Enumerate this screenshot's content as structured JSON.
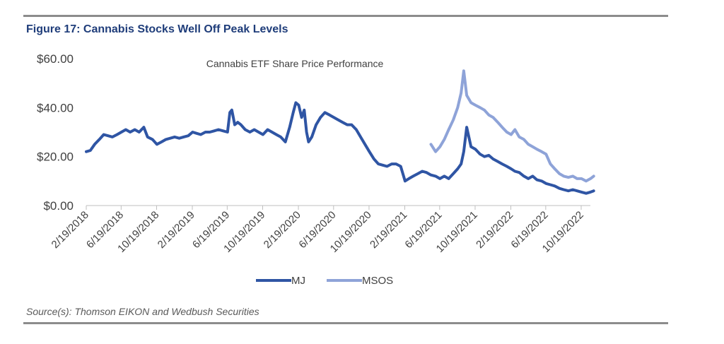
{
  "figure_title": "Figure 17: Cannabis Stocks Well Off Peak Levels",
  "source": "Source(s): Thomson EIKON and Wedbush Securities",
  "colors": {
    "MJ": "#2f55a4",
    "MSOS": "#8ea3d8",
    "rule": "#8c8c8c",
    "title": "#1f3d7a"
  },
  "chart_data": {
    "type": "line",
    "title": "Cannabis ETF Share Price Performance",
    "xlabel": "",
    "ylabel": "",
    "ylim": [
      0,
      60
    ],
    "yticks": [
      0,
      20,
      40,
      60
    ],
    "ytick_labels": [
      "$0.00",
      "$20.00",
      "$40.00",
      "$60.00"
    ],
    "xlim": [
      "2018-02-19",
      "2022-12-01"
    ],
    "xticks": [
      "2018-02-19",
      "2018-06-19",
      "2018-10-19",
      "2019-02-19",
      "2019-06-19",
      "2019-10-19",
      "2020-02-19",
      "2020-06-19",
      "2020-10-19",
      "2021-02-19",
      "2021-06-19",
      "2021-10-19",
      "2022-02-19",
      "2022-06-19",
      "2022-10-19"
    ],
    "xtick_labels": [
      "2/19/2018",
      "6/19/2018",
      "10/19/2018",
      "2/19/2019",
      "6/19/2019",
      "10/19/2019",
      "2/19/2020",
      "6/19/2020",
      "10/19/2020",
      "2/19/2021",
      "6/19/2021",
      "10/19/2021",
      "2/19/2022",
      "6/19/2022",
      "10/19/2022"
    ],
    "grid": false,
    "legend": "bottom-center",
    "series": [
      {
        "name": "MJ",
        "x": [
          "2018-02-19",
          "2018-03-05",
          "2018-03-20",
          "2018-04-05",
          "2018-04-20",
          "2018-05-05",
          "2018-05-20",
          "2018-06-05",
          "2018-06-20",
          "2018-07-05",
          "2018-07-20",
          "2018-08-05",
          "2018-08-20",
          "2018-09-05",
          "2018-09-18",
          "2018-10-05",
          "2018-10-20",
          "2018-11-05",
          "2018-11-20",
          "2018-12-05",
          "2018-12-20",
          "2019-01-05",
          "2019-01-20",
          "2019-02-05",
          "2019-02-20",
          "2019-03-05",
          "2019-03-20",
          "2019-04-05",
          "2019-04-20",
          "2019-05-05",
          "2019-05-20",
          "2019-06-05",
          "2019-06-20",
          "2019-06-28",
          "2019-07-05",
          "2019-07-15",
          "2019-07-25",
          "2019-08-05",
          "2019-08-20",
          "2019-09-05",
          "2019-09-20",
          "2019-10-05",
          "2019-10-20",
          "2019-11-05",
          "2019-11-20",
          "2019-12-05",
          "2019-12-20",
          "2020-01-05",
          "2020-01-20",
          "2020-02-01",
          "2020-02-10",
          "2020-02-20",
          "2020-03-01",
          "2020-03-10",
          "2020-03-18",
          "2020-03-25",
          "2020-04-05",
          "2020-04-20",
          "2020-05-05",
          "2020-05-20",
          "2020-06-05",
          "2020-06-20",
          "2020-07-05",
          "2020-07-20",
          "2020-08-05",
          "2020-08-20",
          "2020-09-05",
          "2020-09-20",
          "2020-10-05",
          "2020-10-20",
          "2020-11-05",
          "2020-11-20",
          "2020-12-05",
          "2020-12-20",
          "2021-01-05",
          "2021-01-20",
          "2021-02-05",
          "2021-02-20",
          "2021-03-05",
          "2021-03-20",
          "2021-04-05",
          "2021-04-20",
          "2021-05-05",
          "2021-05-20",
          "2021-06-05",
          "2021-06-20",
          "2021-07-05",
          "2021-07-20",
          "2021-08-05",
          "2021-08-20",
          "2021-09-01",
          "2021-09-10",
          "2021-09-20",
          "2021-10-05",
          "2021-10-20",
          "2021-11-05",
          "2021-11-20",
          "2021-12-05",
          "2021-12-20",
          "2022-01-05",
          "2022-01-20",
          "2022-02-05",
          "2022-02-20",
          "2022-03-05",
          "2022-03-20",
          "2022-04-05",
          "2022-04-20",
          "2022-05-05",
          "2022-05-20",
          "2022-06-05",
          "2022-06-20",
          "2022-07-05",
          "2022-07-20",
          "2022-08-05",
          "2022-08-20",
          "2022-09-05",
          "2022-09-20",
          "2022-10-05",
          "2022-10-20",
          "2022-11-05",
          "2022-11-20",
          "2022-12-01"
        ],
        "values": [
          22,
          22.5,
          25,
          27,
          29,
          28.5,
          28,
          29,
          30,
          31,
          30,
          31,
          30,
          32,
          28,
          27,
          25,
          26,
          27,
          27.5,
          28,
          27.5,
          28,
          28.5,
          30,
          29.5,
          29,
          30,
          30,
          30.5,
          31,
          30.5,
          30,
          38,
          39,
          33,
          34,
          33,
          31,
          30,
          31,
          30,
          29,
          31,
          30,
          29,
          28,
          26,
          32,
          38,
          42,
          41,
          36,
          39,
          30,
          26,
          28,
          33,
          36,
          38,
          37,
          36,
          35,
          34,
          33,
          33,
          31,
          28,
          25,
          22,
          19,
          17,
          16.5,
          16,
          17,
          17,
          16,
          10,
          11,
          12,
          13,
          14,
          13.5,
          12.5,
          12,
          11,
          12,
          11,
          13,
          15,
          17,
          22,
          32,
          24,
          23,
          21,
          20,
          20.5,
          19,
          18,
          17,
          16,
          15,
          14,
          13.5,
          12,
          11,
          12,
          10.5,
          10,
          9,
          8.5,
          8,
          7,
          6.5,
          6,
          6.5,
          6,
          5.5,
          5,
          5.5,
          6
        ]
      },
      {
        "name": "MSOS",
        "x": [
          "2021-05-20",
          "2021-06-05",
          "2021-06-20",
          "2021-07-05",
          "2021-07-20",
          "2021-08-05",
          "2021-08-20",
          "2021-09-01",
          "2021-09-10",
          "2021-09-20",
          "2021-10-05",
          "2021-10-20",
          "2021-11-05",
          "2021-11-20",
          "2021-12-05",
          "2021-12-20",
          "2022-01-05",
          "2022-01-20",
          "2022-02-05",
          "2022-02-20",
          "2022-03-05",
          "2022-03-20",
          "2022-04-05",
          "2022-04-20",
          "2022-05-05",
          "2022-05-20",
          "2022-06-05",
          "2022-06-20",
          "2022-07-05",
          "2022-07-20",
          "2022-08-05",
          "2022-08-20",
          "2022-09-05",
          "2022-09-20",
          "2022-10-05",
          "2022-10-20",
          "2022-11-05",
          "2022-11-20",
          "2022-12-01"
        ],
        "values": [
          25,
          22,
          24,
          27,
          31,
          35,
          40,
          46,
          55,
          45,
          42,
          41,
          40,
          39,
          37,
          36,
          34,
          32,
          30,
          29,
          31,
          28,
          27,
          25,
          24,
          23,
          22,
          21,
          17,
          15,
          13,
          12,
          11.5,
          12,
          11,
          11,
          10,
          11,
          12
        ]
      }
    ]
  }
}
